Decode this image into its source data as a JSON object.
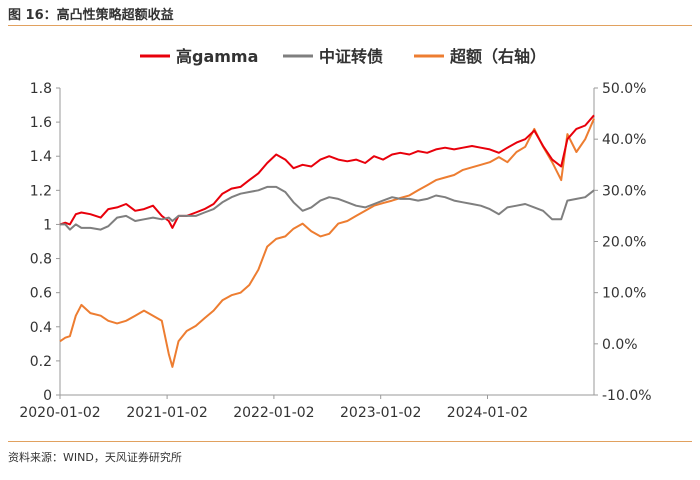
{
  "figure": {
    "title": "图 16：高凸性策略超额收益",
    "source": "资料来源：WIND，天风证券研究所"
  },
  "chart_data": {
    "type": "line",
    "x_ticks": [
      "2020-01-02",
      "2021-01-02",
      "2022-01-02",
      "2023-01-02",
      "2024-01-02"
    ],
    "x_range": [
      "2020-01-02",
      "2024-12-31"
    ],
    "left_axis": {
      "range": [
        0,
        1.8
      ],
      "ticks": [
        "0",
        "0.2",
        "0.4",
        "0.6",
        "0.8",
        "1",
        "1.2",
        "1.4",
        "1.6",
        "1.8"
      ]
    },
    "right_axis": {
      "range": [
        -10,
        50
      ],
      "unit": "%",
      "ticks": [
        "-10.0%",
        "0.0%",
        "10.0%",
        "20.0%",
        "30.0%",
        "40.0%",
        "50.0%"
      ]
    },
    "legend_position": "top",
    "grid": false,
    "series": [
      {
        "name": "高gamma",
        "axis": "left",
        "color": "#e8000b",
        "points": [
          [
            "2020-01-02",
            1.0
          ],
          [
            "2020-01-20",
            1.01
          ],
          [
            "2020-02-05",
            1.0
          ],
          [
            "2020-02-25",
            1.06
          ],
          [
            "2020-03-15",
            1.07
          ],
          [
            "2020-04-15",
            1.06
          ],
          [
            "2020-05-20",
            1.04
          ],
          [
            "2020-06-15",
            1.09
          ],
          [
            "2020-07-15",
            1.1
          ],
          [
            "2020-08-15",
            1.12
          ],
          [
            "2020-09-15",
            1.08
          ],
          [
            "2020-10-15",
            1.09
          ],
          [
            "2020-11-15",
            1.11
          ],
          [
            "2020-12-15",
            1.05
          ],
          [
            "2021-01-08",
            1.02
          ],
          [
            "2021-01-20",
            0.98
          ],
          [
            "2021-02-10",
            1.05
          ],
          [
            "2021-03-10",
            1.05
          ],
          [
            "2021-04-10",
            1.07
          ],
          [
            "2021-05-10",
            1.09
          ],
          [
            "2021-06-10",
            1.12
          ],
          [
            "2021-07-10",
            1.18
          ],
          [
            "2021-08-10",
            1.21
          ],
          [
            "2021-09-10",
            1.22
          ],
          [
            "2021-10-10",
            1.26
          ],
          [
            "2021-11-10",
            1.3
          ],
          [
            "2021-12-10",
            1.36
          ],
          [
            "2022-01-10",
            1.41
          ],
          [
            "2022-02-10",
            1.38
          ],
          [
            "2022-03-10",
            1.33
          ],
          [
            "2022-04-10",
            1.35
          ],
          [
            "2022-05-10",
            1.34
          ],
          [
            "2022-06-10",
            1.38
          ],
          [
            "2022-07-10",
            1.4
          ],
          [
            "2022-08-10",
            1.38
          ],
          [
            "2022-09-10",
            1.37
          ],
          [
            "2022-10-10",
            1.38
          ],
          [
            "2022-11-10",
            1.36
          ],
          [
            "2022-12-10",
            1.4
          ],
          [
            "2023-01-10",
            1.38
          ],
          [
            "2023-02-10",
            1.41
          ],
          [
            "2023-03-10",
            1.42
          ],
          [
            "2023-04-10",
            1.41
          ],
          [
            "2023-05-10",
            1.43
          ],
          [
            "2023-06-10",
            1.42
          ],
          [
            "2023-07-10",
            1.44
          ],
          [
            "2023-08-10",
            1.45
          ],
          [
            "2023-09-10",
            1.44
          ],
          [
            "2023-10-10",
            1.45
          ],
          [
            "2023-11-10",
            1.46
          ],
          [
            "2023-12-10",
            1.45
          ],
          [
            "2024-01-10",
            1.44
          ],
          [
            "2024-02-10",
            1.42
          ],
          [
            "2024-03-10",
            1.45
          ],
          [
            "2024-04-10",
            1.48
          ],
          [
            "2024-05-10",
            1.5
          ],
          [
            "2024-06-10",
            1.55
          ],
          [
            "2024-07-10",
            1.46
          ],
          [
            "2024-08-10",
            1.38
          ],
          [
            "2024-09-10",
            1.34
          ],
          [
            "2024-10-01",
            1.5
          ],
          [
            "2024-11-01",
            1.56
          ],
          [
            "2024-12-01",
            1.58
          ],
          [
            "2024-12-31",
            1.64
          ]
        ]
      },
      {
        "name": "中证转债",
        "axis": "left",
        "color": "#7f7f7f",
        "points": [
          [
            "2020-01-02",
            1.0
          ],
          [
            "2020-01-20",
            1.0
          ],
          [
            "2020-02-05",
            0.97
          ],
          [
            "2020-02-25",
            1.0
          ],
          [
            "2020-03-15",
            0.98
          ],
          [
            "2020-04-15",
            0.98
          ],
          [
            "2020-05-20",
            0.97
          ],
          [
            "2020-06-15",
            0.99
          ],
          [
            "2020-07-15",
            1.04
          ],
          [
            "2020-08-15",
            1.05
          ],
          [
            "2020-09-15",
            1.02
          ],
          [
            "2020-10-15",
            1.03
          ],
          [
            "2020-11-15",
            1.04
          ],
          [
            "2020-12-15",
            1.03
          ],
          [
            "2021-01-08",
            1.04
          ],
          [
            "2021-01-20",
            1.02
          ],
          [
            "2021-02-10",
            1.05
          ],
          [
            "2021-03-10",
            1.05
          ],
          [
            "2021-04-10",
            1.05
          ],
          [
            "2021-05-10",
            1.07
          ],
          [
            "2021-06-10",
            1.09
          ],
          [
            "2021-07-10",
            1.13
          ],
          [
            "2021-08-10",
            1.16
          ],
          [
            "2021-09-10",
            1.18
          ],
          [
            "2021-10-10",
            1.19
          ],
          [
            "2021-11-10",
            1.2
          ],
          [
            "2021-12-10",
            1.22
          ],
          [
            "2022-01-10",
            1.22
          ],
          [
            "2022-02-10",
            1.19
          ],
          [
            "2022-03-10",
            1.13
          ],
          [
            "2022-04-10",
            1.08
          ],
          [
            "2022-05-10",
            1.1
          ],
          [
            "2022-06-10",
            1.14
          ],
          [
            "2022-07-10",
            1.16
          ],
          [
            "2022-08-10",
            1.15
          ],
          [
            "2022-09-10",
            1.13
          ],
          [
            "2022-10-10",
            1.11
          ],
          [
            "2022-11-10",
            1.1
          ],
          [
            "2022-12-10",
            1.12
          ],
          [
            "2023-01-10",
            1.14
          ],
          [
            "2023-02-10",
            1.16
          ],
          [
            "2023-03-10",
            1.15
          ],
          [
            "2023-04-10",
            1.15
          ],
          [
            "2023-05-10",
            1.14
          ],
          [
            "2023-06-10",
            1.15
          ],
          [
            "2023-07-10",
            1.17
          ],
          [
            "2023-08-10",
            1.16
          ],
          [
            "2023-09-10",
            1.14
          ],
          [
            "2023-10-10",
            1.13
          ],
          [
            "2023-11-10",
            1.12
          ],
          [
            "2023-12-10",
            1.11
          ],
          [
            "2024-01-10",
            1.09
          ],
          [
            "2024-02-10",
            1.06
          ],
          [
            "2024-03-10",
            1.1
          ],
          [
            "2024-04-10",
            1.11
          ],
          [
            "2024-05-10",
            1.12
          ],
          [
            "2024-06-10",
            1.1
          ],
          [
            "2024-07-10",
            1.08
          ],
          [
            "2024-08-10",
            1.03
          ],
          [
            "2024-09-10",
            1.03
          ],
          [
            "2024-10-01",
            1.14
          ],
          [
            "2024-11-01",
            1.15
          ],
          [
            "2024-12-01",
            1.16
          ],
          [
            "2024-12-31",
            1.2
          ]
        ]
      },
      {
        "name": "超额（右轴）",
        "axis": "right",
        "color": "#ed7d31",
        "points": [
          [
            "2020-01-02",
            0.5
          ],
          [
            "2020-01-20",
            1.2
          ],
          [
            "2020-02-05",
            1.5
          ],
          [
            "2020-02-25",
            5.5
          ],
          [
            "2020-03-15",
            7.6
          ],
          [
            "2020-04-15",
            6.0
          ],
          [
            "2020-05-20",
            5.5
          ],
          [
            "2020-06-15",
            4.5
          ],
          [
            "2020-07-15",
            4.0
          ],
          [
            "2020-08-15",
            4.5
          ],
          [
            "2020-09-15",
            5.5
          ],
          [
            "2020-10-15",
            6.5
          ],
          [
            "2020-11-15",
            5.5
          ],
          [
            "2020-12-15",
            4.5
          ],
          [
            "2021-01-08",
            -2.0
          ],
          [
            "2021-01-20",
            -4.5
          ],
          [
            "2021-02-10",
            0.5
          ],
          [
            "2021-03-10",
            2.5
          ],
          [
            "2021-04-10",
            3.5
          ],
          [
            "2021-05-10",
            5.0
          ],
          [
            "2021-06-10",
            6.5
          ],
          [
            "2021-07-10",
            8.5
          ],
          [
            "2021-08-10",
            9.5
          ],
          [
            "2021-09-10",
            10.0
          ],
          [
            "2021-10-10",
            11.5
          ],
          [
            "2021-11-10",
            14.5
          ],
          [
            "2021-12-10",
            19.0
          ],
          [
            "2022-01-10",
            20.5
          ],
          [
            "2022-02-10",
            21.0
          ],
          [
            "2022-03-10",
            22.5
          ],
          [
            "2022-04-10",
            23.5
          ],
          [
            "2022-05-10",
            22.0
          ],
          [
            "2022-06-10",
            21.0
          ],
          [
            "2022-07-10",
            21.5
          ],
          [
            "2022-08-10",
            23.5
          ],
          [
            "2022-09-10",
            24.0
          ],
          [
            "2022-10-10",
            25.0
          ],
          [
            "2022-11-10",
            26.0
          ],
          [
            "2022-12-10",
            27.0
          ],
          [
            "2023-01-10",
            27.5
          ],
          [
            "2023-02-10",
            28.0
          ],
          [
            "2023-03-10",
            28.5
          ],
          [
            "2023-04-10",
            29.0
          ],
          [
            "2023-05-10",
            30.0
          ],
          [
            "2023-06-10",
            31.0
          ],
          [
            "2023-07-10",
            32.0
          ],
          [
            "2023-08-10",
            32.5
          ],
          [
            "2023-09-10",
            33.0
          ],
          [
            "2023-10-10",
            34.0
          ],
          [
            "2023-11-10",
            34.5
          ],
          [
            "2023-12-10",
            35.0
          ],
          [
            "2024-01-10",
            35.5
          ],
          [
            "2024-02-10",
            36.5
          ],
          [
            "2024-03-10",
            35.5
          ],
          [
            "2024-04-10",
            37.5
          ],
          [
            "2024-05-10",
            38.5
          ],
          [
            "2024-06-10",
            42.0
          ],
          [
            "2024-07-10",
            38.5
          ],
          [
            "2024-08-10",
            35.5
          ],
          [
            "2024-09-10",
            32.0
          ],
          [
            "2024-10-01",
            41.0
          ],
          [
            "2024-11-01",
            37.5
          ],
          [
            "2024-12-01",
            40.0
          ],
          [
            "2024-12-31",
            44.0
          ]
        ]
      }
    ]
  }
}
